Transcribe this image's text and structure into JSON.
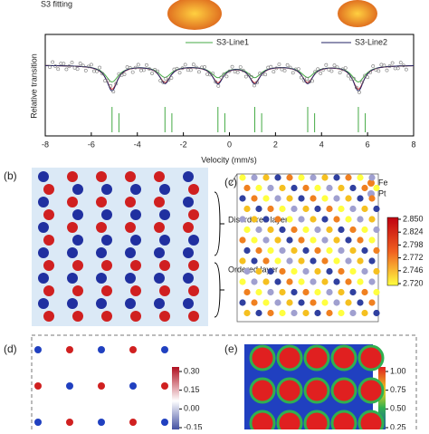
{
  "spectrum": {
    "title": "S3 fitting",
    "ylabel": "Relative transition",
    "xlabel": "Velocity (mm/s)",
    "xlim": [
      -8,
      8
    ],
    "xticks": [
      -8,
      -6,
      -4,
      -2,
      0,
      2,
      4,
      6,
      8
    ],
    "legend": [
      "S3-Line1",
      "S3-Line2"
    ]
  },
  "panel_b": {
    "label": "(b)",
    "annotations": [
      "Disordered layer",
      "Ordered layer"
    ]
  },
  "panel_c": {
    "label": "(c)",
    "legend": [
      "Fe",
      "Pt"
    ],
    "colorbar": [
      {
        "value": 2.85,
        "label": "2.850"
      },
      {
        "value": 2.824,
        "label": "2.824"
      },
      {
        "value": 2.798,
        "label": "2.798"
      },
      {
        "value": 2.772,
        "label": "2.772"
      },
      {
        "value": 2.746,
        "label": "2.746"
      },
      {
        "value": 2.72,
        "label": "2.720"
      }
    ]
  },
  "panel_d": {
    "label": "(d)",
    "colorbar": [
      {
        "value": 0.3,
        "label": "0.30"
      },
      0.15,
      {
        "value": 0,
        "label": "0.00"
      },
      -0.15
    ]
  },
  "panel_e": {
    "label": "(e)",
    "colorbar": [
      {
        "value": 1,
        "label": "1.00"
      },
      0.75,
      {
        "value": 0.5,
        "label": "0.50"
      },
      0.25
    ]
  }
}
